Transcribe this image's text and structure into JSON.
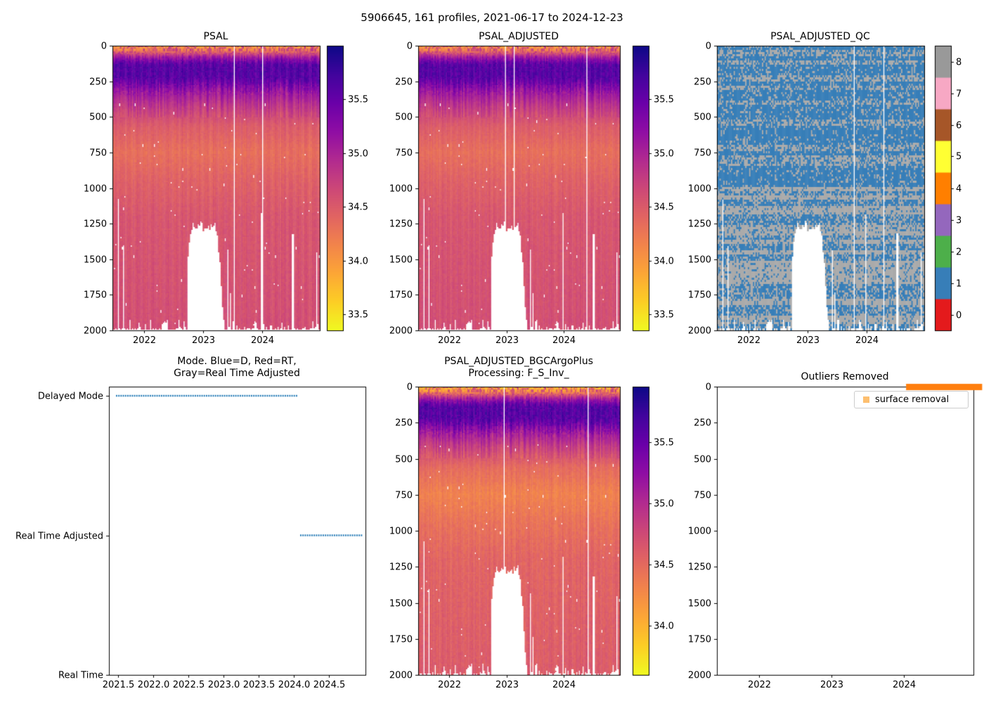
{
  "figure": {
    "title": "5906645, 161 profiles, 2021-06-17 to 2024-12-23",
    "background": "#ffffff"
  },
  "heatmap_model": {
    "n_profiles": 161,
    "depth_range": [
      0,
      2000
    ],
    "profile_breakpoints": [
      [
        0,
        34.15
      ],
      [
        40,
        34.4
      ],
      [
        80,
        35.1
      ],
      [
        130,
        35.6
      ],
      [
        230,
        35.6
      ],
      [
        320,
        35.15
      ],
      [
        430,
        34.8
      ],
      [
        560,
        34.5
      ],
      [
        750,
        34.33
      ],
      [
        950,
        34.45
      ],
      [
        1200,
        34.55
      ],
      [
        2000,
        34.62
      ]
    ],
    "surface_mottle": {
      "max_depth": 60,
      "amp": 1.3,
      "skew": 0.3
    },
    "colormap_reversed": true,
    "colormap_stops": [
      [
        0,
        "#0d0887"
      ],
      [
        0.1,
        "#41049d"
      ],
      [
        0.2,
        "#6a00a8"
      ],
      [
        0.3,
        "#8f0da4"
      ],
      [
        0.4,
        "#b12a90"
      ],
      [
        0.5,
        "#cc4778"
      ],
      [
        0.6,
        "#e16462"
      ],
      [
        0.7,
        "#f2844b"
      ],
      [
        0.8,
        "#fca636"
      ],
      [
        0.9,
        "#fcce25"
      ],
      [
        1,
        "#f0f921"
      ]
    ],
    "deep_gap": {
      "t0": 2022.72,
      "t1": 2023.36,
      "min_depth": 1235
    },
    "shallow_profiles": [
      [
        2021.56,
        1075
      ],
      [
        2021.65,
        1400
      ],
      [
        2023.42,
        1430
      ],
      [
        2023.47,
        1740
      ],
      [
        2023.98,
        1180
      ],
      [
        2024.52,
        1320
      ],
      [
        2024.93,
        1450
      ]
    ]
  },
  "chart_data": [
    {
      "type": "heatmap",
      "title": "PSAL",
      "x_range": [
        2021.46,
        2024.98
      ],
      "x_ticks": [
        "2022",
        "2023",
        "2024"
      ],
      "y_ticks": [
        "0",
        "250",
        "500",
        "750",
        "1000",
        "1250",
        "1500",
        "1750",
        "2000"
      ],
      "y_range": [
        0,
        2000
      ],
      "colorbar": {
        "vmin": 33.35,
        "vmax": 36.0,
        "ticks": [
          "33.5",
          "34.0",
          "34.5",
          "35.0",
          "35.5"
        ]
      },
      "missing_times": [
        2023.52,
        2024.0
      ]
    },
    {
      "type": "heatmap",
      "title": "PSAL_ADJUSTED",
      "x_range": [
        2021.46,
        2024.98
      ],
      "x_ticks": [
        "2022",
        "2023",
        "2024"
      ],
      "y_ticks": [
        "0",
        "250",
        "500",
        "750",
        "1000",
        "1250",
        "1500",
        "1750",
        "2000"
      ],
      "y_range": [
        0,
        2000
      ],
      "colorbar": {
        "vmin": 33.35,
        "vmax": 36.0,
        "ticks": [
          "33.5",
          "34.0",
          "34.5",
          "35.0",
          "35.5"
        ]
      },
      "missing_times": [
        2022.97,
        2023.13,
        2024.4
      ]
    },
    {
      "type": "qc_heatmap",
      "title": "PSAL_ADJUSTED_QC",
      "x_range": [
        2021.46,
        2024.98
      ],
      "x_ticks": [
        "2022",
        "2023",
        "2024"
      ],
      "y_ticks": [
        "0",
        "250",
        "500",
        "750",
        "1000",
        "1250",
        "1500",
        "1750",
        "2000"
      ],
      "y_range": [
        0,
        2000
      ],
      "cell_colors": {
        "blue": "#377eb8",
        "gray": "#aaaaaa"
      },
      "gray_fraction_shallow": 0.25,
      "gray_fraction_deep": 0.75,
      "colorbar": {
        "ticks": [
          "0",
          "1",
          "2",
          "3",
          "4",
          "5",
          "6",
          "7",
          "8"
        ],
        "colors": [
          "#e41a1c",
          "#377eb8",
          "#4daf4a",
          "#9467bd",
          "#ff7f00",
          "#ffff33",
          "#a65628",
          "#f7a8c4",
          "#999999"
        ]
      },
      "missing_times": [
        2023.79,
        2024.3
      ]
    },
    {
      "type": "mode",
      "title": "Mode. Blue=D, Red=RT,\nGray=Real Time Adjusted",
      "x_range": [
        2021.37,
        2025.02
      ],
      "x_ticks": [
        "2021.5",
        "2022.0",
        "2022.5",
        "2023.0",
        "2023.5",
        "2024.0",
        "2024.5"
      ],
      "y_categories": [
        "Real Time",
        "Real Time Adjusted",
        "Delayed Mode"
      ],
      "marker_color": "#1f77b4",
      "segments": [
        {
          "category": "Delayed Mode",
          "level": 2,
          "t0": 2021.47,
          "t1": 2024.06
        },
        {
          "category": "Real Time Adjusted",
          "level": 1,
          "t0": 2024.09,
          "t1": 2024.97
        }
      ]
    },
    {
      "type": "heatmap",
      "title": "PSAL_ADJUSTED_BGCArgoPlus\nProcessing: F_S_Inv_",
      "x_range": [
        2021.46,
        2024.98
      ],
      "x_ticks": [
        "2022",
        "2023",
        "2024"
      ],
      "y_ticks": [
        "0",
        "250",
        "500",
        "750",
        "1000",
        "1250",
        "1500",
        "1750",
        "2000"
      ],
      "y_range": [
        0,
        2000
      ],
      "colorbar": {
        "vmin": 33.6,
        "vmax": 35.95,
        "ticks": [
          "34.0",
          "34.5",
          "35.0",
          "35.5"
        ]
      },
      "missing_times": [
        2022.95,
        2024.42
      ]
    },
    {
      "type": "outliers",
      "title": "Outliers Removed",
      "x_range": [
        2021.42,
        2024.96
      ],
      "x_ticks": [
        "2022",
        "2023",
        "2024"
      ],
      "y_ticks": [
        "0",
        "250",
        "500",
        "750",
        "1000",
        "1250",
        "1500",
        "1750",
        "2000"
      ],
      "y_range": [
        0,
        2000
      ],
      "legend": [
        {
          "label": "surface removal",
          "color": "#fdbf6f"
        }
      ],
      "surface_removal_bar": {
        "t0": 2024.03,
        "t1": 2025.08,
        "depth": 0,
        "color": "#ff7f0e"
      }
    }
  ]
}
